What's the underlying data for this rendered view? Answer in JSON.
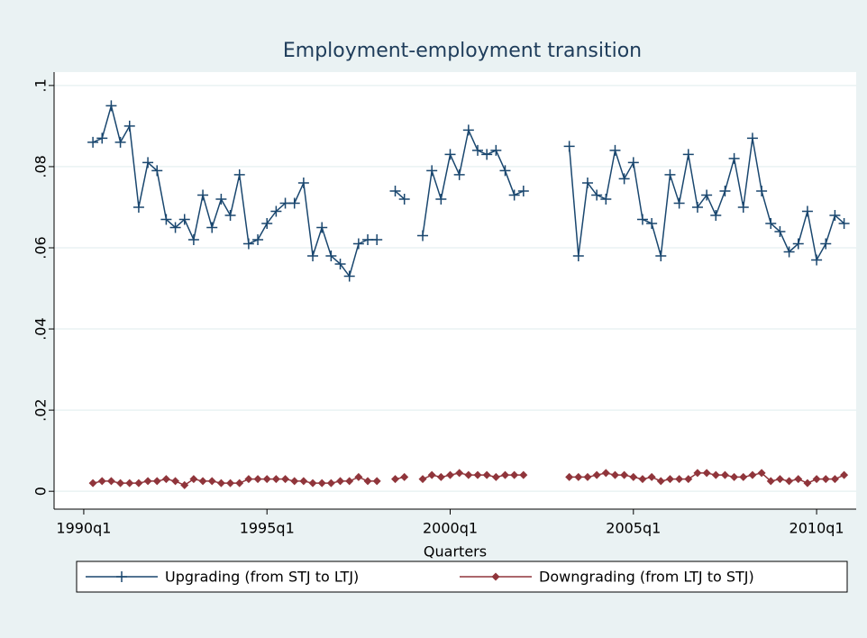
{
  "chart_data": {
    "type": "line",
    "title": "Employment-employment transition",
    "xlabel": "Quarters",
    "x": [
      1990.25,
      1990.5,
      1990.75,
      1991,
      1991.25,
      1991.5,
      1991.75,
      1992,
      1992.25,
      1992.5,
      1992.75,
      1993,
      1993.25,
      1993.5,
      1993.75,
      1994,
      1994.25,
      1994.5,
      1994.75,
      1995,
      1995.25,
      1995.5,
      1995.75,
      1996,
      1996.25,
      1996.5,
      1996.75,
      1997,
      1997.25,
      1997.5,
      1997.75,
      1998,
      1998.25,
      1998.5,
      1998.75,
      1999,
      1999.25,
      1999.5,
      1999.75,
      2000,
      2000.25,
      2000.5,
      2000.75,
      2001,
      2001.25,
      2001.5,
      2001.75,
      2002,
      2002.25,
      2002.5,
      2002.75,
      2003,
      2003.25,
      2003.5,
      2003.75,
      2004,
      2004.25,
      2004.5,
      2004.75,
      2005,
      2005.25,
      2005.5,
      2005.75,
      2006,
      2006.25,
      2006.5,
      2006.75,
      2007,
      2007.25,
      2007.5,
      2007.75,
      2008,
      2008.25,
      2008.5,
      2008.75,
      2009,
      2009.25,
      2009.5,
      2009.75,
      2010,
      2010.25,
      2010.5,
      2010.75
    ],
    "series": [
      {
        "name": "Upgrading (from STJ to LTJ)",
        "color": "#1a476f",
        "marker": "plus",
        "values": [
          0.086,
          0.087,
          0.095,
          0.086,
          0.09,
          0.07,
          0.081,
          0.079,
          0.067,
          0.065,
          0.067,
          0.062,
          0.073,
          0.065,
          0.072,
          0.068,
          0.078,
          0.061,
          0.062,
          0.066,
          0.069,
          0.071,
          0.071,
          0.076,
          0.058,
          0.065,
          0.058,
          0.056,
          0.053,
          0.061,
          0.062,
          0.062,
          null,
          0.074,
          0.072,
          null,
          0.063,
          0.079,
          0.072,
          0.083,
          0.078,
          0.089,
          0.084,
          0.083,
          0.084,
          0.079,
          0.073,
          0.074,
          null,
          null,
          null,
          null,
          0.085,
          0.058,
          0.076,
          0.073,
          0.072,
          0.084,
          0.077,
          0.081,
          0.067,
          0.066,
          0.058,
          0.078,
          0.071,
          0.083,
          0.07,
          0.073,
          0.068,
          0.074,
          0.082,
          0.07,
          0.087,
          0.074,
          0.066,
          0.064,
          0.059,
          0.061,
          0.069,
          0.057,
          0.061,
          0.068,
          0.066
        ]
      },
      {
        "name": "Downgrading (from LTJ to STJ)",
        "color": "#90353b",
        "marker": "diamond",
        "values": [
          0.002,
          0.0025,
          0.0025,
          0.002,
          0.002,
          0.002,
          0.0025,
          0.0025,
          0.003,
          0.0025,
          0.0015,
          0.003,
          0.0025,
          0.0025,
          0.002,
          0.002,
          0.002,
          0.003,
          0.003,
          0.003,
          0.003,
          0.003,
          0.0025,
          0.0025,
          0.002,
          0.002,
          0.002,
          0.0025,
          0.0025,
          0.0035,
          0.0025,
          0.0025,
          null,
          0.003,
          0.0035,
          null,
          0.003,
          0.004,
          0.0035,
          0.004,
          0.0045,
          0.004,
          0.004,
          0.004,
          0.0035,
          0.004,
          0.004,
          0.004,
          null,
          null,
          null,
          null,
          0.0035,
          0.0035,
          0.0035,
          0.004,
          0.0045,
          0.004,
          0.004,
          0.0035,
          0.003,
          0.0035,
          0.0025,
          0.003,
          0.003,
          0.003,
          0.0045,
          0.0045,
          0.004,
          0.004,
          0.0035,
          0.0035,
          0.004,
          0.0045,
          0.0025,
          0.003,
          0.0025,
          0.003,
          0.002,
          0.003,
          0.003,
          0.003,
          0.004
        ]
      }
    ],
    "xlim": [
      1989.19,
      2011.08
    ],
    "xticks": [
      {
        "value": 1990,
        "label": "1990q1"
      },
      {
        "value": 1995,
        "label": "1995q1"
      },
      {
        "value": 2000,
        "label": "2000q1"
      },
      {
        "value": 2005,
        "label": "2005q1"
      },
      {
        "value": 2010,
        "label": "2010q1"
      }
    ],
    "ylim": [
      -0.0044,
      0.1033
    ],
    "yticks": [
      0,
      {
        "value": 0.02,
        "label": ".02"
      },
      {
        "value": 0.04,
        "label": ".04"
      },
      {
        "value": 0.06,
        "label": ".06"
      },
      {
        "value": 0.08,
        "label": ".08"
      },
      {
        "value": 0.1,
        "label": ".1"
      }
    ],
    "grid": true,
    "legend": "bottom"
  }
}
